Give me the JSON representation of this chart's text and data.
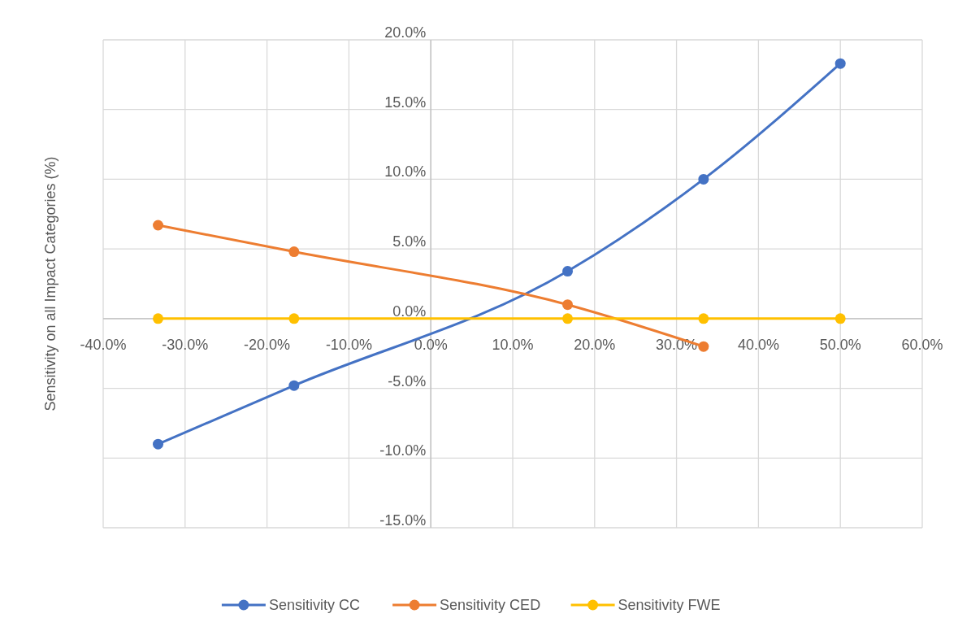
{
  "chart_data": {
    "type": "line",
    "ylabel": "Sensitivity on all Impact Categories (%)",
    "x": [
      -33.3,
      -16.7,
      16.7,
      33.3,
      50
    ],
    "series": [
      {
        "name": "Sensitivity CC",
        "color": "#4472c4",
        "values": [
          -9.0,
          -4.8,
          3.4,
          10.0,
          18.3
        ]
      },
      {
        "name": "Sensitivity CED",
        "color": "#ed7d31",
        "x": [
          -33.3,
          -16.7,
          16.7,
          33.3
        ],
        "values": [
          6.7,
          4.8,
          1.0,
          -2.0
        ]
      },
      {
        "name": "Sensitivity FWE",
        "color": "#ffc000",
        "values": [
          0,
          0,
          0,
          0,
          0
        ]
      }
    ],
    "xlim": [
      -40,
      60
    ],
    "xticks": [
      {
        "value": -40,
        "label": "-40.0%"
      },
      {
        "value": -30,
        "label": "-30.0%"
      },
      {
        "value": -20,
        "label": "-20.0%"
      },
      {
        "value": -10,
        "label": "-10.0%"
      },
      {
        "value": 0,
        "label": "0.0%"
      },
      {
        "value": 10,
        "label": "10.0%"
      },
      {
        "value": 20,
        "label": "20.0%"
      },
      {
        "value": 30,
        "label": "30.0%"
      },
      {
        "value": 40,
        "label": "40.0%"
      },
      {
        "value": 50,
        "label": "50.0%"
      },
      {
        "value": 60,
        "label": "60.0%"
      }
    ],
    "ylim": [
      -15,
      20
    ],
    "yticks": [
      {
        "value": -15,
        "label": "-15.0%"
      },
      {
        "value": -10,
        "label": "-10.0%"
      },
      {
        "value": -5,
        "label": "-5.0%"
      },
      {
        "value": 0,
        "label": "0.0%"
      },
      {
        "value": 5,
        "label": "5.0%"
      },
      {
        "value": 10,
        "label": "10.0%"
      },
      {
        "value": 15,
        "label": "15.0%"
      },
      {
        "value": 20,
        "label": "20.0%"
      }
    ],
    "grid": true,
    "legend": "bottom",
    "marker": "circle",
    "line_style": "solid"
  }
}
